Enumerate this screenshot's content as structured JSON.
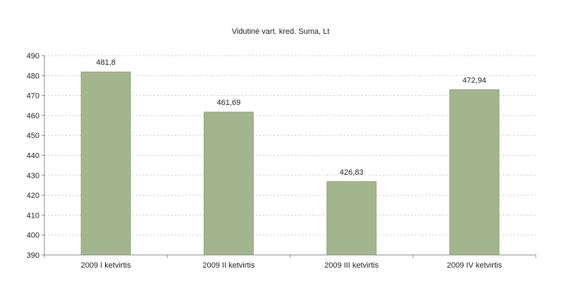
{
  "chart_data": {
    "type": "bar",
    "title": "Vidutinė vart. kred. Suma, Lt",
    "categories": [
      "2009 I ketvirtis",
      "2009 II ketvirtis",
      "2009 III ketvirtis",
      "2009 IV ketvirtis"
    ],
    "values": [
      481.8,
      461.69,
      426.83,
      472.94
    ],
    "value_labels": [
      "481,8",
      "461,69",
      "426,83",
      "472,94"
    ],
    "ylim": [
      390,
      490
    ],
    "yticks": [
      390,
      400,
      410,
      420,
      430,
      440,
      450,
      460,
      470,
      480,
      490
    ],
    "grid": true,
    "bar_color": "#a3b58c"
  }
}
